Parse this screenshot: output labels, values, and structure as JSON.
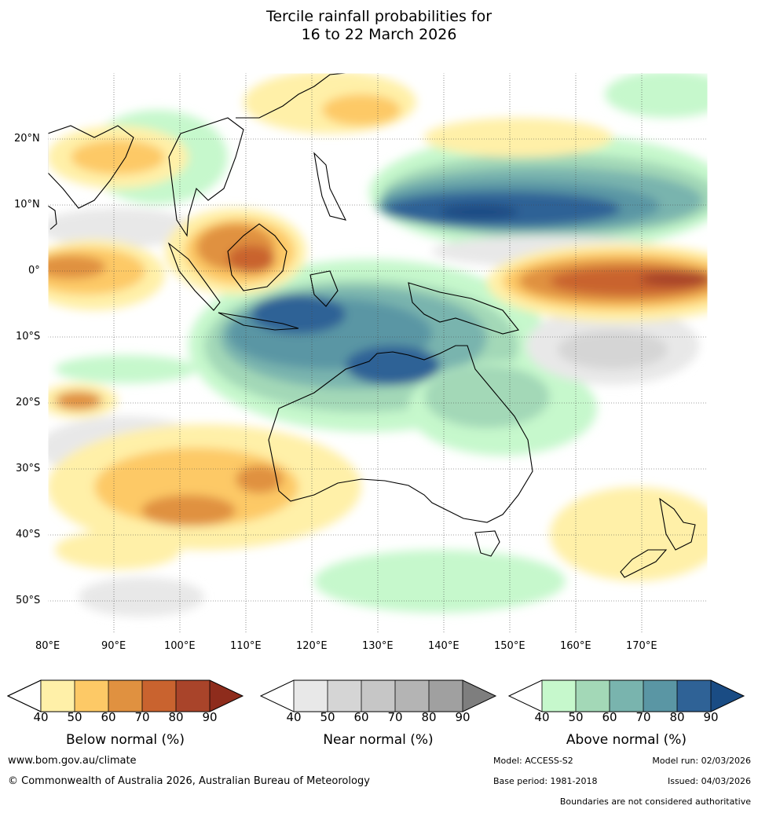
{
  "title": {
    "line1": "Tercile rainfall probabilities for",
    "line2": "16 to 22 March 2026"
  },
  "map": {
    "lat_labels": [
      "20°N",
      "10°N",
      "0°",
      "10°S",
      "20°S",
      "30°S",
      "40°S",
      "50°S"
    ],
    "lon_labels": [
      "80°E",
      "90°E",
      "100°E",
      "110°E",
      "120°E",
      "130°E",
      "140°E",
      "150°E",
      "160°E",
      "170°E"
    ],
    "colors": {
      "below": [
        "#fff0a8",
        "#fdc966",
        "#e09140",
        "#c9632f",
        "#a9442a",
        "#8e2c1c"
      ],
      "near": [
        "#e8e8e8",
        "#d5d5d5",
        "#c6c6c6",
        "#b4b4b4",
        "#a0a0a0",
        "#7e7e7e"
      ],
      "above": [
        "#c6f8cc",
        "#a3d8b7",
        "#79b4ae",
        "#5a96a4",
        "#2f6296",
        "#1a4c84"
      ],
      "coast": "#000000",
      "border": "#888888"
    }
  },
  "legend": {
    "below_normal": {
      "label": "Below normal (%)",
      "ticks": [
        "40",
        "50",
        "60",
        "70",
        "80",
        "90"
      ]
    },
    "near_normal": {
      "label": "Near normal (%)",
      "ticks": [
        "40",
        "50",
        "60",
        "70",
        "80",
        "90"
      ]
    },
    "above_normal": {
      "label": "Above normal (%)",
      "ticks": [
        "40",
        "50",
        "60",
        "70",
        "80",
        "90"
      ]
    }
  },
  "footer": {
    "website": "www.bom.gov.au/climate",
    "copyright": "© Commonwealth of Australia 2026, Australian Bureau of Meteorology",
    "model": "Model: ACCESS-S2",
    "model_run": "Model run: 02/03/2026",
    "base_period": "Base period: 1981-2018",
    "issued": "Issued: 04/03/2026",
    "boundaries": "Boundaries are not considered authoritative"
  }
}
